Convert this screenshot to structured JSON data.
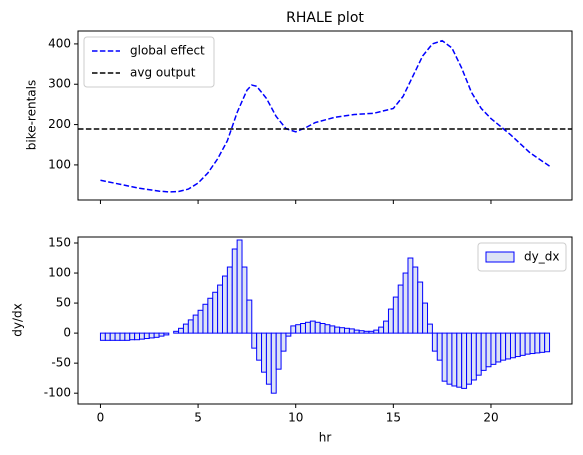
{
  "chart_data": [
    {
      "type": "line",
      "title": "RHALE plot",
      "ylabel": "bike-rentals",
      "x": [
        0,
        1,
        2,
        3,
        3.5,
        4,
        4.5,
        5,
        5.5,
        6,
        6.5,
        7,
        7.5,
        7.75,
        8,
        8.5,
        9,
        9.5,
        10,
        10.5,
        11,
        12,
        13,
        14,
        15,
        15.5,
        16,
        16.5,
        17,
        17.5,
        18,
        18.5,
        19,
        19.5,
        20,
        21,
        22,
        23
      ],
      "series": [
        {
          "name": "global effect",
          "color": "#0000ff",
          "dashed": true,
          "values": [
            62,
            52,
            42,
            35,
            33,
            34,
            40,
            55,
            80,
            115,
            160,
            230,
            285,
            298,
            295,
            265,
            220,
            190,
            182,
            192,
            205,
            218,
            225,
            228,
            240,
            270,
            320,
            370,
            400,
            408,
            390,
            340,
            280,
            240,
            215,
            175,
            130,
            97
          ]
        }
      ],
      "hline": {
        "name": "avg output",
        "value": 189,
        "color": "#000000",
        "dashed": true
      },
      "xlim": [
        -1.15,
        24.15
      ],
      "ylim": [
        13,
        432
      ],
      "yticks": [
        100,
        200,
        300,
        400
      ],
      "legend": "upper left"
    },
    {
      "type": "histogram",
      "xlabel": "hr",
      "ylabel": "dy/dx",
      "bins": [
        0,
        0.25,
        0.5,
        0.75,
        1,
        1.25,
        1.5,
        1.75,
        2,
        2.25,
        2.5,
        2.75,
        3,
        3.25,
        3.5,
        3.75,
        4,
        4.25,
        4.5,
        4.75,
        5,
        5.25,
        5.5,
        5.75,
        6,
        6.25,
        6.5,
        6.75,
        7,
        7.25,
        7.5,
        7.75,
        8,
        8.25,
        8.5,
        8.75,
        9,
        9.25,
        9.5,
        9.75,
        10,
        10.25,
        10.5,
        10.75,
        11,
        11.25,
        11.5,
        11.75,
        12,
        12.25,
        12.5,
        12.75,
        13,
        13.25,
        13.5,
        13.75,
        14,
        14.25,
        14.5,
        14.75,
        15,
        15.25,
        15.5,
        15.75,
        16,
        16.25,
        16.5,
        16.75,
        17,
        17.25,
        17.5,
        17.75,
        18,
        18.25,
        18.5,
        18.75,
        19,
        19.25,
        19.5,
        19.75,
        20,
        20.25,
        20.5,
        20.75,
        21,
        21.25,
        21.5,
        21.75,
        22,
        22.25,
        22.5,
        22.75,
        23
      ],
      "series": [
        {
          "name": "dy_dx",
          "color": "#dde3f5",
          "edgecolor": "#0000ff",
          "values": [
            -12,
            -12,
            -12,
            -12,
            -12,
            -12,
            -11,
            -11,
            -10,
            -9,
            -8,
            -7,
            -5,
            -3,
            0,
            3,
            8,
            15,
            22,
            30,
            38,
            48,
            58,
            68,
            80,
            95,
            110,
            140,
            155,
            110,
            55,
            -25,
            -45,
            -65,
            -85,
            -100,
            -60,
            -30,
            -5,
            12,
            14,
            16,
            18,
            20,
            18,
            16,
            14,
            12,
            10,
            9,
            8,
            7,
            5,
            4,
            3,
            3,
            5,
            10,
            20,
            40,
            60,
            80,
            100,
            125,
            110,
            85,
            50,
            15,
            -30,
            -45,
            -80,
            -85,
            -88,
            -90,
            -92,
            -85,
            -78,
            -70,
            -62,
            -56,
            -52,
            -48,
            -45,
            -43,
            -41,
            -39,
            -37,
            -35,
            -34,
            -33,
            -32,
            -31
          ]
        }
      ],
      "xlim": [
        -1.15,
        24.15
      ],
      "xticks": [
        0,
        5,
        10,
        15,
        20
      ],
      "ylim": [
        -118,
        160
      ],
      "yticks": [
        -100,
        -50,
        0,
        50,
        100,
        150
      ],
      "legend": "upper right"
    }
  ]
}
